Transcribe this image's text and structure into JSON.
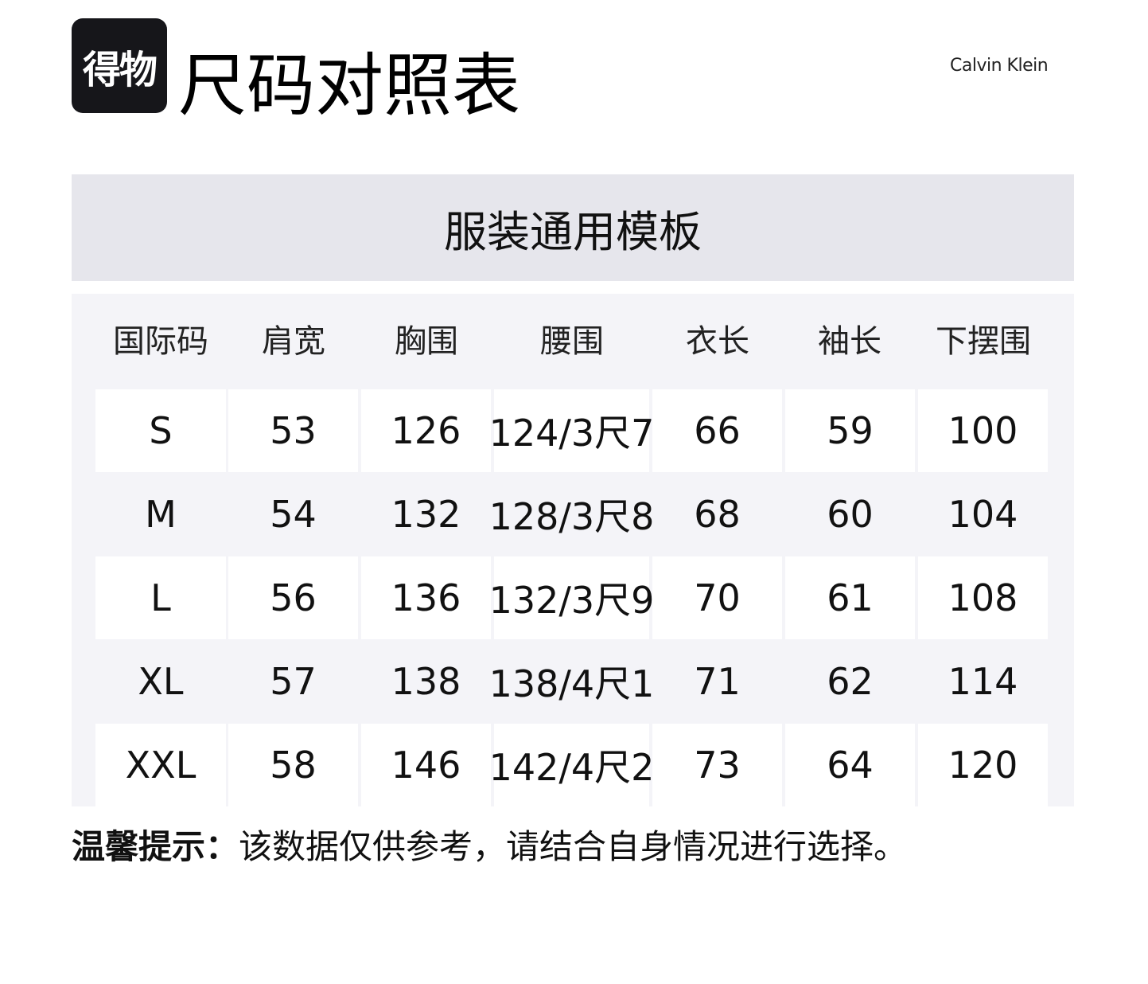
{
  "header": {
    "logo_text": "得物",
    "title": "尺码对照表",
    "brand": "Calvin Klein"
  },
  "template_title": "服装通用模板",
  "table": {
    "columns": [
      "国际码",
      "肩宽",
      "胸围",
      "腰围",
      "衣长",
      "袖长",
      "下摆围"
    ],
    "rows": [
      [
        "S",
        "53",
        "126",
        "124/3尺7",
        "66",
        "59",
        "100"
      ],
      [
        "M",
        "54",
        "132",
        "128/3尺8",
        "68",
        "60",
        "104"
      ],
      [
        "L",
        "56",
        "136",
        "132/3尺9",
        "70",
        "61",
        "108"
      ],
      [
        "XL",
        "57",
        "138",
        "138/4尺1",
        "71",
        "62",
        "114"
      ],
      [
        "XXL",
        "58",
        "146",
        "142/4尺2",
        "73",
        "64",
        "120"
      ]
    ]
  },
  "footer": {
    "label": "温馨提示：",
    "text": "该数据仅供参考，请结合自身情况进行选择。"
  }
}
